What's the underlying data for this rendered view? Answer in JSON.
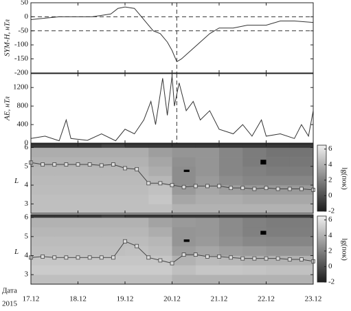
{
  "chart_data": [
    {
      "type": "line",
      "ylabel": "SYM-H, нТл",
      "color": "#333333",
      "xlim": [
        17,
        23
      ],
      "ylim": [
        -200,
        50
      ],
      "yticks": [
        -200,
        -150,
        -100,
        -50,
        0,
        50
      ],
      "hlines": [
        0,
        -50
      ],
      "vline": 20.1,
      "x": [
        17.0,
        17.3,
        17.6,
        18.0,
        18.3,
        18.5,
        18.7,
        18.85,
        19.0,
        19.2,
        19.3,
        19.45,
        19.6,
        19.75,
        19.9,
        20.0,
        20.1,
        20.2,
        20.4,
        20.6,
        20.8,
        21.0,
        21.3,
        21.6,
        22.0,
        22.3,
        22.6,
        23.0
      ],
      "values": [
        -10,
        -5,
        0,
        0,
        0,
        5,
        10,
        30,
        35,
        30,
        10,
        -20,
        -50,
        -60,
        -90,
        -120,
        -160,
        -150,
        -120,
        -90,
        -60,
        -40,
        -40,
        -30,
        -30,
        -15,
        -15,
        -20
      ]
    },
    {
      "type": "line",
      "ylabel": "AE, нТл",
      "color": "#333333",
      "xlim": [
        17,
        23
      ],
      "ylim": [
        0,
        1500
      ],
      "yticks": [
        0,
        400,
        800,
        1200
      ],
      "vline": 20.1,
      "x": [
        17.0,
        17.3,
        17.6,
        17.75,
        17.85,
        18.2,
        18.5,
        18.8,
        19.0,
        19.2,
        19.4,
        19.55,
        19.65,
        19.8,
        19.9,
        20.0,
        20.05,
        20.15,
        20.3,
        20.45,
        20.6,
        20.8,
        21.0,
        21.3,
        21.5,
        21.7,
        21.9,
        22.0,
        22.3,
        22.6,
        22.75,
        22.9,
        23.0
      ],
      "values": [
        100,
        150,
        50,
        500,
        100,
        60,
        200,
        50,
        300,
        200,
        500,
        900,
        400,
        1400,
        600,
        1450,
        800,
        1300,
        700,
        900,
        500,
        700,
        300,
        200,
        400,
        150,
        500,
        150,
        200,
        100,
        400,
        150,
        700
      ]
    },
    {
      "type": "heatmap",
      "ylabel": "L",
      "xlim": [
        17,
        23
      ],
      "ylim": [
        2.5,
        6.2
      ],
      "yticks": [
        3,
        4,
        5,
        6
      ],
      "x_edges": [
        17,
        17.5,
        18,
        18.5,
        19,
        19.5,
        20,
        20.5,
        21,
        21.5,
        22,
        22.5,
        23
      ],
      "y_edges": [
        2.5,
        3,
        3.5,
        4,
        4.5,
        5,
        5.5,
        6,
        6.2
      ],
      "z": [
        [
          4.5,
          4.5,
          4.5,
          4.5,
          4.5,
          4.5,
          4,
          4,
          4,
          4,
          4,
          4
        ],
        [
          4.5,
          4.5,
          4.5,
          4.5,
          4.5,
          4.8,
          3.5,
          3.8,
          3.8,
          3.6,
          3.6,
          3.6
        ],
        [
          4.4,
          4.4,
          4.4,
          4.4,
          4.4,
          4.6,
          3,
          3.5,
          3.2,
          3,
          3,
          3
        ],
        [
          4.3,
          4.3,
          4.3,
          4.3,
          4.3,
          4.2,
          2.5,
          3,
          2.5,
          2.2,
          2.2,
          2.2
        ],
        [
          4.2,
          4.2,
          4.2,
          4.2,
          4.2,
          3.8,
          2.5,
          2.8,
          2.2,
          2,
          1.8,
          1.8
        ],
        [
          4,
          4,
          4,
          4,
          4,
          3.5,
          2.6,
          2.8,
          2.2,
          1.8,
          1.6,
          1.6
        ],
        [
          3.8,
          3.8,
          3.8,
          3.8,
          3.8,
          3.2,
          2.8,
          2.8,
          2.2,
          1.8,
          1.5,
          1.5
        ],
        [
          -1,
          -1,
          -1,
          -0.5,
          -1,
          -1,
          -1,
          -1,
          -1,
          -1,
          -1,
          -1
        ]
      ],
      "clim": [
        -2,
        6.5
      ],
      "cticks": [
        -2,
        0,
        2,
        4,
        6
      ],
      "clabel": "lg(пок)",
      "blocks": [
        {
          "x": [
            20.25,
            20.37
          ],
          "y": [
            4.7,
            4.82
          ]
        },
        {
          "x": [
            21.88,
            22.0
          ],
          "y": [
            5.1,
            5.35
          ]
        }
      ],
      "x": [
        17.0,
        17.25,
        17.5,
        17.75,
        18.0,
        18.25,
        18.5,
        18.75,
        19.0,
        19.25,
        19.5,
        19.75,
        20.0,
        20.25,
        20.5,
        20.75,
        21.0,
        21.25,
        21.5,
        21.75,
        22.0,
        22.25,
        22.5,
        22.75,
        23.0
      ],
      "values": [
        5.2,
        5.1,
        5.1,
        5.1,
        5.1,
        5.1,
        5.05,
        5.1,
        4.9,
        4.85,
        4.1,
        4.1,
        4.0,
        3.9,
        3.95,
        3.95,
        3.95,
        3.85,
        3.85,
        3.8,
        3.85,
        3.8,
        3.8,
        3.8,
        3.75
      ]
    },
    {
      "type": "heatmap",
      "ylabel": "L",
      "xlim": [
        17,
        23
      ],
      "ylim": [
        2.5,
        6.15
      ],
      "yticks": [
        3,
        4,
        5,
        6
      ],
      "xticks": [
        {
          "value": 17,
          "label": "17.12"
        },
        {
          "value": 18,
          "label": "18.12"
        },
        {
          "value": 19,
          "label": "19.12"
        },
        {
          "value": 20,
          "label": "20.12"
        },
        {
          "value": 21,
          "label": "21.12"
        },
        {
          "value": 22,
          "label": "22.12"
        },
        {
          "value": 23,
          "label": "23.12"
        }
      ],
      "xlabel": "Дата",
      "year": "2015",
      "x_edges": [
        17,
        17.5,
        18,
        18.5,
        19,
        19.5,
        20,
        20.5,
        21,
        21.5,
        22,
        22.5,
        23
      ],
      "y_edges": [
        2.5,
        3,
        3.5,
        4,
        4.5,
        5,
        5.5,
        6,
        6.15
      ],
      "z": [
        [
          4.5,
          4.5,
          4.5,
          4.5,
          4.5,
          4.5,
          4,
          4,
          4,
          4,
          4,
          4
        ],
        [
          5,
          5,
          5,
          5,
          5,
          5,
          4.5,
          4.8,
          4.8,
          4.7,
          4.6,
          4.6
        ],
        [
          4.8,
          4.8,
          4.8,
          4.8,
          4.8,
          4.8,
          4,
          4.3,
          4.2,
          4,
          4,
          4
        ],
        [
          4.5,
          4.5,
          4.5,
          4.5,
          4.6,
          4.4,
          3.2,
          3.5,
          3.2,
          3,
          2.8,
          2.8
        ],
        [
          4.4,
          4.4,
          4.4,
          4.4,
          4.4,
          4.2,
          2.8,
          3,
          2.6,
          2.3,
          2.2,
          2.2
        ],
        [
          4.2,
          4.2,
          4.2,
          4.2,
          4.2,
          3.8,
          2.8,
          2.9,
          2.4,
          2,
          1.9,
          1.9
        ],
        [
          4,
          4,
          4,
          4,
          4,
          3.4,
          3,
          2.9,
          2.4,
          2,
          1.8,
          1.8
        ],
        [
          -1,
          -1,
          -1,
          -0.5,
          -1,
          -1,
          -1,
          -1,
          -1,
          -1,
          -1,
          -1
        ]
      ],
      "clim": [
        -2,
        6.5
      ],
      "cticks": [
        -2,
        0,
        2,
        4,
        6
      ],
      "clabel": "lg(пок)",
      "blocks": [
        {
          "x": [
            20.25,
            20.37
          ],
          "y": [
            4.72,
            4.85
          ]
        },
        {
          "x": [
            21.88,
            22.0
          ],
          "y": [
            5.1,
            5.3
          ]
        }
      ],
      "x": [
        17.0,
        17.25,
        17.5,
        17.75,
        18.0,
        18.25,
        18.5,
        18.75,
        19.0,
        19.25,
        19.5,
        19.75,
        20.0,
        20.25,
        20.5,
        20.75,
        21.0,
        21.25,
        21.5,
        21.75,
        22.0,
        22.25,
        22.5,
        22.75,
        23.0
      ],
      "values": [
        3.9,
        3.95,
        3.9,
        3.9,
        3.9,
        3.9,
        3.9,
        3.9,
        4.75,
        4.5,
        3.9,
        3.75,
        3.6,
        4.05,
        4.05,
        3.95,
        3.95,
        3.9,
        3.85,
        3.85,
        3.85,
        3.85,
        3.8,
        3.8,
        3.7
      ]
    }
  ]
}
